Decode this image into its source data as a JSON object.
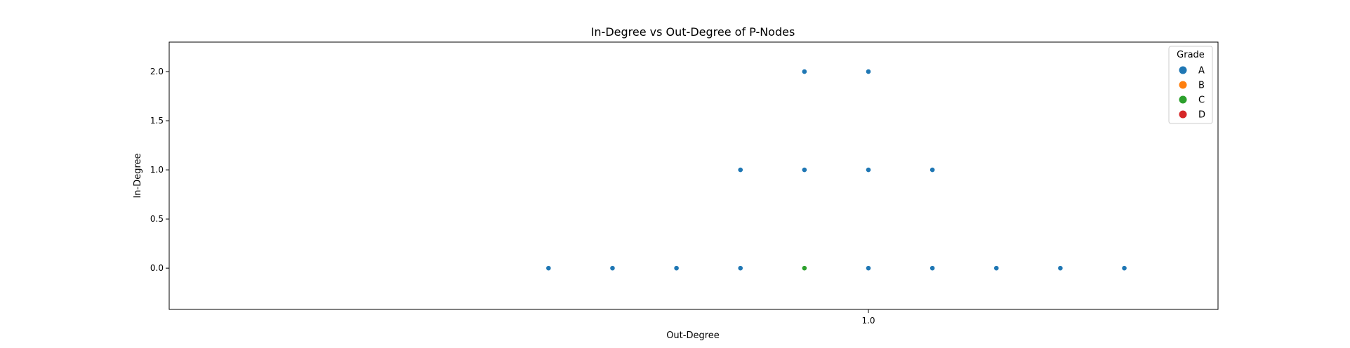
{
  "chart_data": {
    "type": "scatter",
    "title": "In-Degree vs Out-Degree of P-Nodes",
    "xlabel": "Out-Degree",
    "ylabel": "In-Degree",
    "xlim": [
      0.8,
      1.1
    ],
    "ylim": [
      -0.42,
      2.3
    ],
    "x_ticks": [
      1.0
    ],
    "x_tick_labels": [
      "1.0"
    ],
    "y_ticks": [
      0.0,
      0.5,
      1.0,
      1.5,
      2.0
    ],
    "y_tick_labels": [
      "0.0",
      "0.5",
      "1.0",
      "1.5",
      "2.0"
    ],
    "grid": false,
    "legend": {
      "title": "Grade",
      "placement": "top-right",
      "entries": [
        {
          "name": "A",
          "color": "#1f77b4"
        },
        {
          "name": "B",
          "color": "#ff7f0e"
        },
        {
          "name": "C",
          "color": "#2ca02c"
        },
        {
          "name": "D",
          "color": "#d62728"
        }
      ]
    },
    "series": [
      {
        "name": "A",
        "color": "#1f77b4",
        "points": [
          {
            "x": 0.9817,
            "y": 2.0
          },
          {
            "x": 1.0,
            "y": 2.0
          },
          {
            "x": 0.9634,
            "y": 1.0
          },
          {
            "x": 0.9817,
            "y": 1.0
          },
          {
            "x": 1.0,
            "y": 1.0
          },
          {
            "x": 1.0183,
            "y": 1.0
          },
          {
            "x": 0.9085,
            "y": 0.0
          },
          {
            "x": 0.9268,
            "y": 0.0
          },
          {
            "x": 0.9451,
            "y": 0.0
          },
          {
            "x": 0.9634,
            "y": 0.0
          },
          {
            "x": 1.0,
            "y": 0.0
          },
          {
            "x": 1.0183,
            "y": 0.0
          },
          {
            "x": 1.0366,
            "y": 0.0
          },
          {
            "x": 1.0549,
            "y": 0.0
          },
          {
            "x": 1.0732,
            "y": 0.0
          }
        ]
      },
      {
        "name": "B",
        "color": "#ff7f0e",
        "points": []
      },
      {
        "name": "C",
        "color": "#2ca02c",
        "points": [
          {
            "x": 0.9817,
            "y": 0.0
          }
        ]
      },
      {
        "name": "D",
        "color": "#d62728",
        "points": []
      }
    ]
  }
}
